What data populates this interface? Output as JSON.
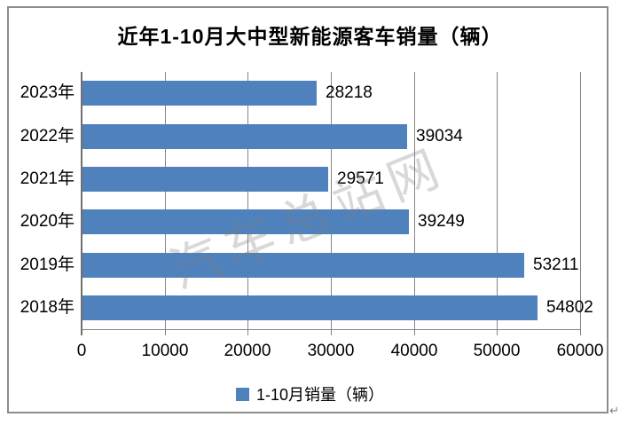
{
  "page": {
    "paragraph_mark": "↵"
  },
  "chart_data": {
    "type": "bar",
    "orientation": "horizontal",
    "title": "近年1-10月大中型新能源客车销量（辆）",
    "categories": [
      "2023年",
      "2022年",
      "2021年",
      "2020年",
      "2019年",
      "2018年"
    ],
    "series": [
      {
        "name": "1-10月销量（辆）",
        "values": [
          28218,
          39034,
          29571,
          39249,
          53211,
          54802
        ]
      }
    ],
    "x_ticks": [
      0,
      10000,
      20000,
      30000,
      40000,
      50000,
      60000
    ],
    "xlim": [
      0,
      60000
    ],
    "grid": true,
    "legend_position": "bottom",
    "watermark": "汽车总站网",
    "colors": {
      "bar": "#4F81BD",
      "gridline": "#858585",
      "axis": "#6f6f6f",
      "frame_border": "#8c8c8c",
      "text": "#000000"
    }
  }
}
